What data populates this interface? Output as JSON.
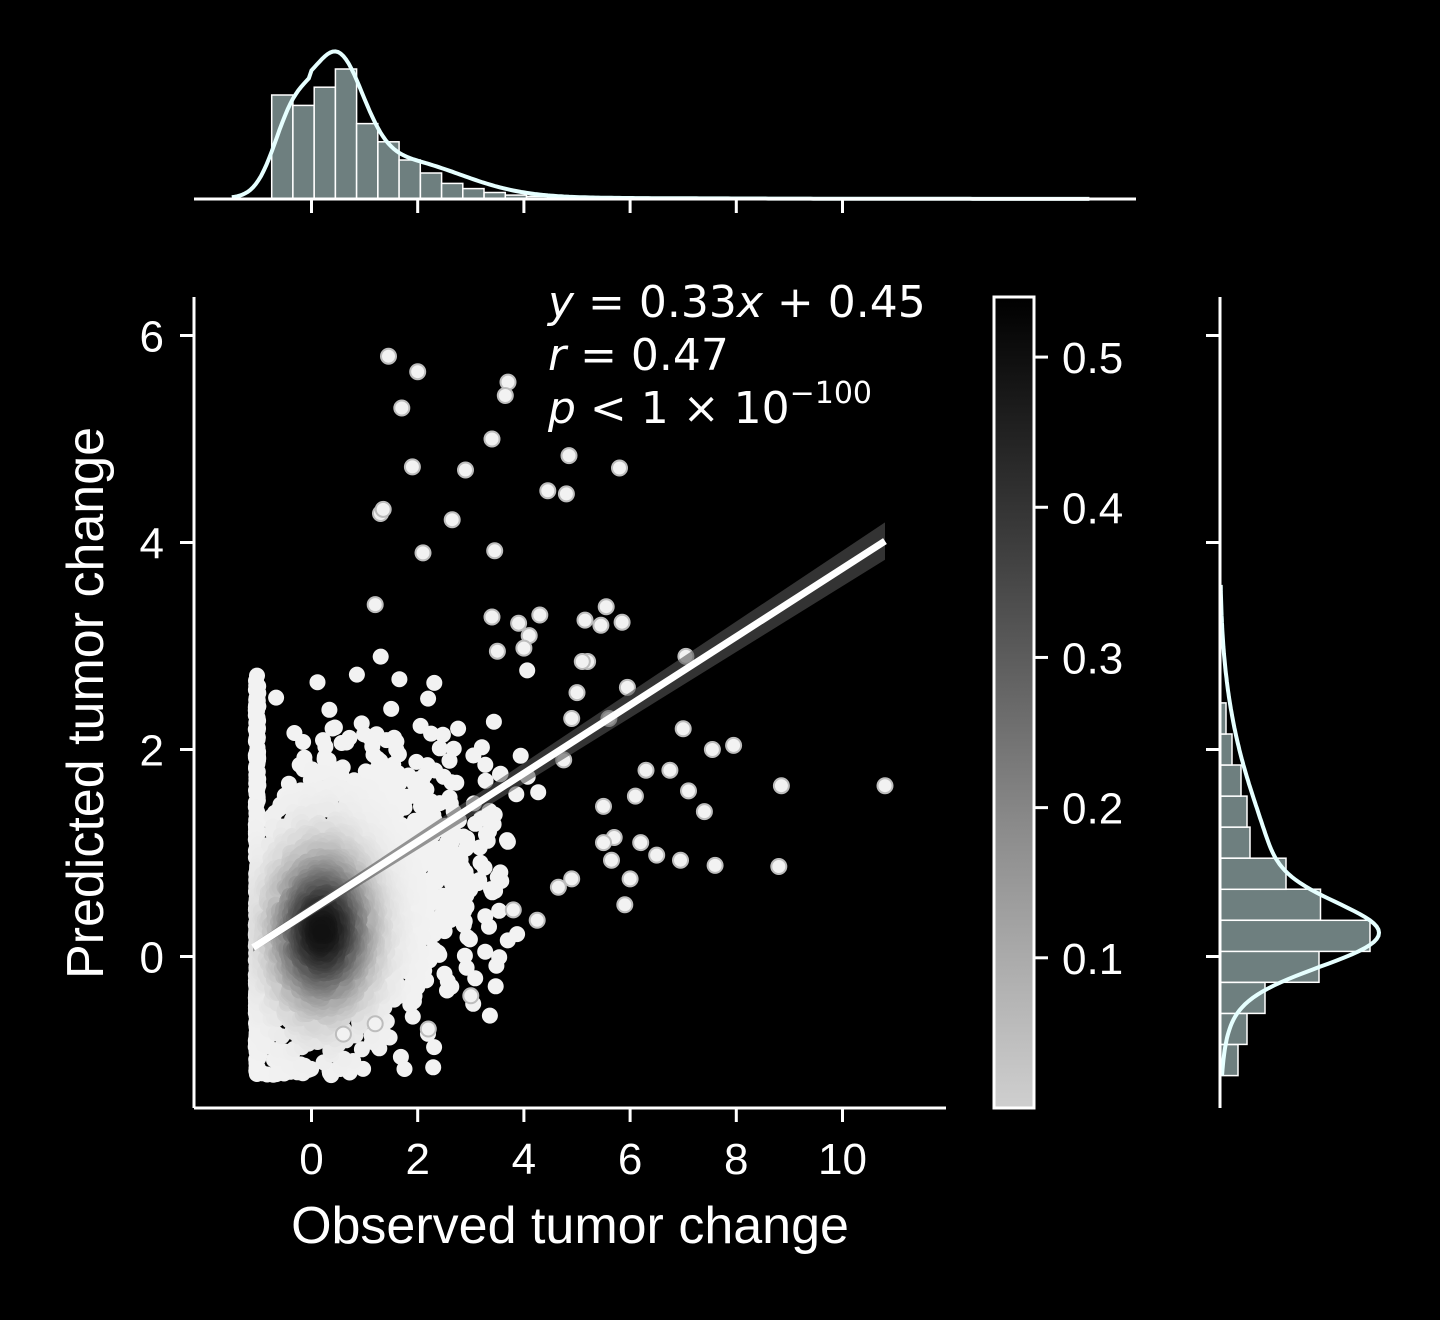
{
  "colors": {
    "background": "#000000",
    "axis": "#ffffff",
    "marginal_fill": "#6e7f7f",
    "kde_line": "#e6ffff",
    "regression_line": "#ffffff",
    "point_low_density": "#f2f2f2",
    "point_high_density": "#111111"
  },
  "chart_data": {
    "type": "scatter",
    "xlabel": "Observed tumor change",
    "ylabel": "Predicted tumor change",
    "xlim": [
      -2.2,
      12
    ],
    "ylim": [
      -1.5,
      6.4
    ],
    "x_ticks": [
      0,
      2,
      4,
      6,
      8,
      10
    ],
    "y_ticks": [
      0,
      2,
      4,
      6
    ],
    "grid": false,
    "regression": {
      "slope": 0.33,
      "intercept": 0.45,
      "x_range": [
        -1.1,
        10.8
      ]
    },
    "annotation": {
      "line1": {
        "y": "y",
        "eq": " = 0.33",
        "x": "x",
        "rest": " + 0.45"
      },
      "line2": {
        "r": "r",
        "rest": " = 0.47"
      },
      "line3": {
        "p": "p",
        "rest": " < 1 × 10",
        "exp": "−100"
      }
    },
    "colorbar": {
      "range": [
        0.0,
        0.54
      ],
      "ticks": [
        0.1,
        0.2,
        0.3,
        0.4,
        0.5
      ],
      "tick_labels": [
        "0.1",
        "0.2",
        "0.3",
        "0.4",
        "0.5"
      ],
      "cmap": "Greys"
    },
    "outliers": [
      [
        1.45,
        5.8
      ],
      [
        2.0,
        5.65
      ],
      [
        1.7,
        5.3
      ],
      [
        3.7,
        5.55
      ],
      [
        3.65,
        5.42
      ],
      [
        3.4,
        5.0
      ],
      [
        1.9,
        4.73
      ],
      [
        2.9,
        4.7
      ],
      [
        4.85,
        4.84
      ],
      [
        5.8,
        4.72
      ],
      [
        4.45,
        4.5
      ],
      [
        4.8,
        4.47
      ],
      [
        1.3,
        4.28
      ],
      [
        1.35,
        4.32
      ],
      [
        2.65,
        4.22
      ],
      [
        2.1,
        3.9
      ],
      [
        3.45,
        3.92
      ],
      [
        1.2,
        3.4
      ],
      [
        5.55,
        3.38
      ],
      [
        4.3,
        3.3
      ],
      [
        5.15,
        3.25
      ],
      [
        5.45,
        3.2
      ],
      [
        5.85,
        3.23
      ],
      [
        3.4,
        3.28
      ],
      [
        3.9,
        3.22
      ],
      [
        4.1,
        3.1
      ],
      [
        4.0,
        2.98
      ],
      [
        3.5,
        2.95
      ],
      [
        5.2,
        2.85
      ],
      [
        7.05,
        2.9
      ],
      [
        5.0,
        2.55
      ],
      [
        5.1,
        2.85
      ],
      [
        6.3,
        1.8
      ],
      [
        4.9,
        2.3
      ],
      [
        5.6,
        2.3
      ],
      [
        5.95,
        2.6
      ],
      [
        7.0,
        2.2
      ],
      [
        7.55,
        2.0
      ],
      [
        7.95,
        2.04
      ],
      [
        6.75,
        1.8
      ],
      [
        7.1,
        1.6
      ],
      [
        7.4,
        1.4
      ],
      [
        8.85,
        1.65
      ],
      [
        10.8,
        1.65
      ],
      [
        6.2,
        1.1
      ],
      [
        5.7,
        1.15
      ],
      [
        5.5,
        1.1
      ],
      [
        6.0,
        0.75
      ],
      [
        6.5,
        0.98
      ],
      [
        5.65,
        0.93
      ],
      [
        6.95,
        0.93
      ],
      [
        7.6,
        0.88
      ],
      [
        8.8,
        0.87
      ],
      [
        4.9,
        0.75
      ],
      [
        4.65,
        0.67
      ],
      [
        5.9,
        0.5
      ],
      [
        4.25,
        0.35
      ],
      [
        3.8,
        0.45
      ],
      [
        3.0,
        -0.38
      ],
      [
        2.2,
        -0.7
      ],
      [
        1.2,
        -0.65
      ],
      [
        0.6,
        -0.75
      ],
      [
        5.5,
        1.45
      ],
      [
        6.1,
        1.55
      ],
      [
        4.75,
        1.9
      ]
    ],
    "dense_cloud": {
      "center": [
        0.2,
        0.25
      ],
      "count": 2400,
      "x_floor": -1.05,
      "y_range": [
        -1.15,
        3.0
      ]
    },
    "x_marginal": {
      "type": "histogram",
      "bin_edges": [
        -0.75,
        -0.35,
        0.05,
        0.45,
        0.85,
        1.25,
        1.65,
        2.05,
        2.45,
        2.85,
        3.25,
        3.65,
        4.05,
        4.45,
        4.85
      ],
      "counts": [
        0.8,
        0.72,
        0.86,
        1.0,
        0.58,
        0.44,
        0.3,
        0.2,
        0.12,
        0.08,
        0.05,
        0.03,
        0.02,
        0.015
      ]
    },
    "y_marginal": {
      "type": "histogram",
      "bin_edges": [
        -1.15,
        -0.85,
        -0.55,
        -0.25,
        0.05,
        0.35,
        0.65,
        0.95,
        1.25,
        1.55,
        1.85,
        2.15,
        2.45
      ],
      "counts": [
        0.12,
        0.18,
        0.3,
        0.66,
        1.0,
        0.67,
        0.44,
        0.2,
        0.18,
        0.14,
        0.08,
        0.04
      ]
    }
  }
}
